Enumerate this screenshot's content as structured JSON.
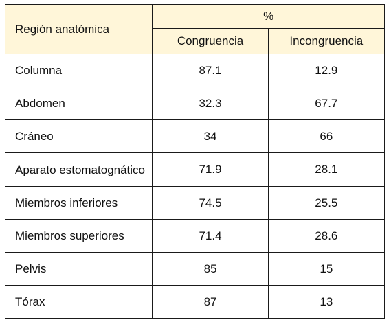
{
  "table": {
    "header": {
      "region": "Región anatómica",
      "group": "%",
      "congruencia": "Congruencia",
      "incongruencia": "Incongruencia"
    },
    "rows": [
      {
        "region": "Columna",
        "congruencia": "87.1",
        "incongruencia": "12.9"
      },
      {
        "region": "Abdomen",
        "congruencia": "32.3",
        "incongruencia": "67.7"
      },
      {
        "region": "Cráneo",
        "congruencia": "34",
        "incongruencia": "66"
      },
      {
        "region": "Aparato estomatognático",
        "congruencia": "71.9",
        "incongruencia": "28.1"
      },
      {
        "region": "Miembros inferiores",
        "congruencia": "74.5",
        "incongruencia": "25.5"
      },
      {
        "region": "Miembros superiores",
        "congruencia": "71.4",
        "incongruencia": "28.6"
      },
      {
        "region": "Pelvis",
        "congruencia": "85",
        "incongruencia": "15"
      },
      {
        "region": "Tórax",
        "congruencia": "87",
        "incongruencia": "13"
      }
    ]
  }
}
